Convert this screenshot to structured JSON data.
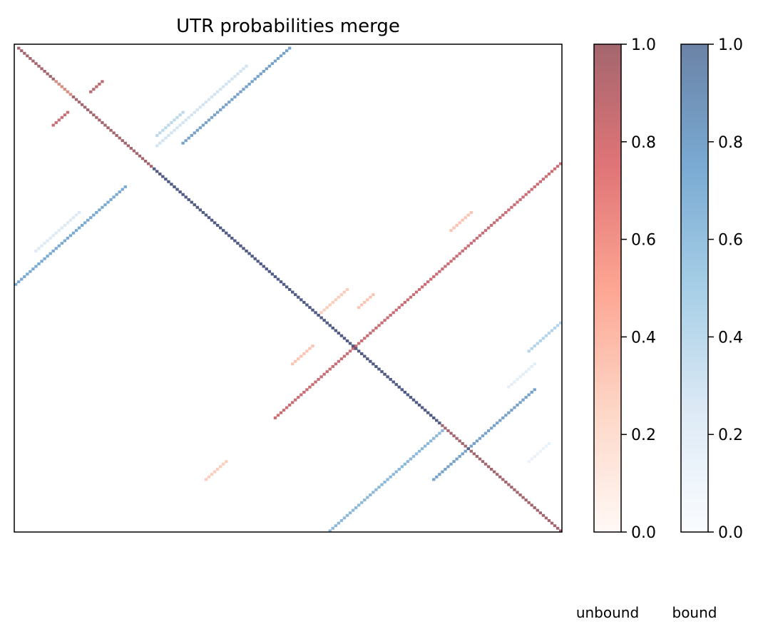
{
  "chart_data": {
    "type": "heatmap",
    "title": "UTR probabilities merge",
    "matrix_size": 190,
    "xticks": [],
    "yticks": [],
    "grid": false,
    "colorbars": [
      {
        "label": "unbound",
        "colormap": "Reds",
        "alpha": 0.6,
        "range": [
          0.0,
          1.0
        ],
        "ticks": [
          "0.0",
          "0.2",
          "0.4",
          "0.6",
          "0.8",
          "1.0"
        ],
        "colors": [
          "#fff5f0",
          "#fcbba1",
          "#fb6a4a",
          "#cb181d",
          "#67000d"
        ]
      },
      {
        "label": "bound",
        "colormap": "Blues",
        "alpha": 0.6,
        "range": [
          0.0,
          1.0
        ],
        "ticks": [
          "0.0",
          "0.2",
          "0.4",
          "0.6",
          "0.8",
          "1.0"
        ],
        "colors": [
          "#f7fbff",
          "#c6dbef",
          "#6baed6",
          "#2171b5",
          "#08306b"
        ]
      }
    ],
    "segments": [
      {
        "series": "unbound",
        "row_start": 1,
        "col_start": 1,
        "length": 189,
        "direction": "diagonal",
        "value": 1.0
      },
      {
        "series": "bound",
        "row_start": 48,
        "col_start": 48,
        "length": 100,
        "direction": "diagonal",
        "value": 0.85
      },
      {
        "series": "unbound",
        "row_start": 14,
        "col_start": 14,
        "length": 6,
        "direction": "diagonal",
        "value": 0.3
      },
      {
        "series": "bound",
        "row_start": 1,
        "col_start": 95,
        "length": 38,
        "direction": "anti",
        "value": 0.8
      },
      {
        "series": "bound",
        "row_start": 8,
        "col_start": 80,
        "length": 32,
        "direction": "anti",
        "value": 0.3
      },
      {
        "series": "bound",
        "row_start": 26,
        "col_start": 58,
        "length": 10,
        "direction": "anti",
        "value": 0.4
      },
      {
        "series": "bound",
        "row_start": 55,
        "col_start": 38,
        "length": 40,
        "direction": "anti",
        "value": 0.75
      },
      {
        "series": "bound",
        "row_start": 65,
        "col_start": 22,
        "length": 16,
        "direction": "anti",
        "value": 0.25
      },
      {
        "series": "unbound",
        "row_start": 14,
        "col_start": 30,
        "length": 5,
        "direction": "anti",
        "value": 0.9
      },
      {
        "series": "unbound",
        "row_start": 26,
        "col_start": 18,
        "length": 6,
        "direction": "anti",
        "value": 0.85
      },
      {
        "series": "unbound",
        "row_start": 46,
        "col_start": 189,
        "length": 100,
        "direction": "anti",
        "value": 0.85
      },
      {
        "series": "unbound",
        "row_start": 65,
        "col_start": 158,
        "length": 8,
        "direction": "anti",
        "value": 0.35
      },
      {
        "series": "unbound",
        "row_start": 95,
        "col_start": 115,
        "length": 10,
        "direction": "anti",
        "value": 0.3
      },
      {
        "series": "unbound",
        "row_start": 97,
        "col_start": 124,
        "length": 6,
        "direction": "anti",
        "value": 0.35
      },
      {
        "series": "unbound",
        "row_start": 117,
        "col_start": 103,
        "length": 8,
        "direction": "anti",
        "value": 0.35
      },
      {
        "series": "unbound",
        "row_start": 162,
        "col_start": 73,
        "length": 8,
        "direction": "anti",
        "value": 0.3
      },
      {
        "series": "bound",
        "row_start": 108,
        "col_start": 189,
        "length": 12,
        "direction": "anti",
        "value": 0.45
      },
      {
        "series": "bound",
        "row_start": 124,
        "col_start": 180,
        "length": 10,
        "direction": "anti",
        "value": 0.2
      },
      {
        "series": "bound",
        "row_start": 134,
        "col_start": 180,
        "length": 36,
        "direction": "anti",
        "value": 0.8
      },
      {
        "series": "bound",
        "row_start": 150,
        "col_start": 148,
        "length": 40,
        "direction": "anti",
        "value": 0.65
      },
      {
        "series": "bound",
        "row_start": 155,
        "col_start": 185,
        "length": 8,
        "direction": "anti",
        "value": 0.15
      }
    ]
  },
  "colorbar_tick_labels": [
    "0.0",
    "0.2",
    "0.4",
    "0.6",
    "0.8",
    "1.0"
  ],
  "colorbar_names": [
    "unbound",
    "bound"
  ]
}
